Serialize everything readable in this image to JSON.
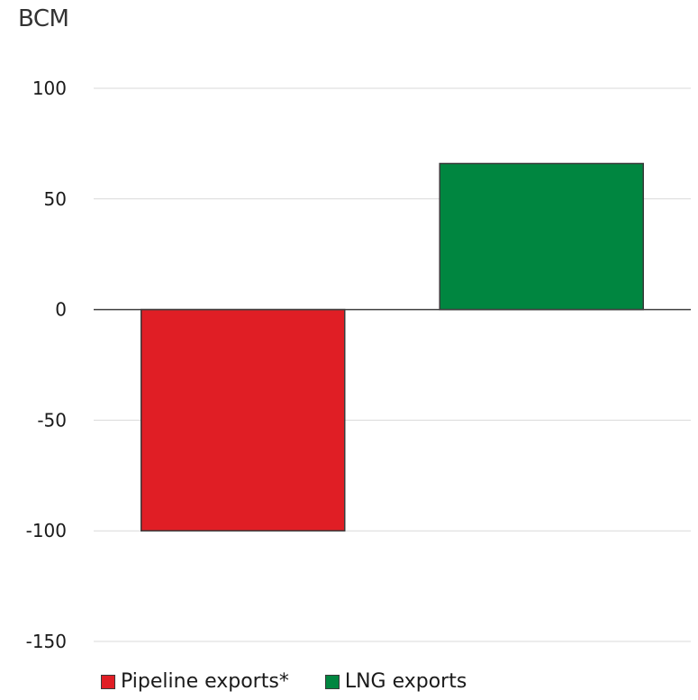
{
  "chart_data": {
    "type": "bar",
    "ylabel": "BCM",
    "categories": [
      "Pipeline exports*",
      "LNG exports"
    ],
    "values": [
      -100,
      66
    ],
    "colors": [
      "#e01e25",
      "#008640"
    ],
    "ylim": [
      -150,
      100
    ],
    "yticks": [
      100,
      50,
      0,
      -50,
      -100,
      -150
    ],
    "ytick_labels": [
      "100",
      "50",
      "0",
      "-50",
      "-100",
      "-150"
    ],
    "grid": true,
    "legend": "bottom-left"
  }
}
